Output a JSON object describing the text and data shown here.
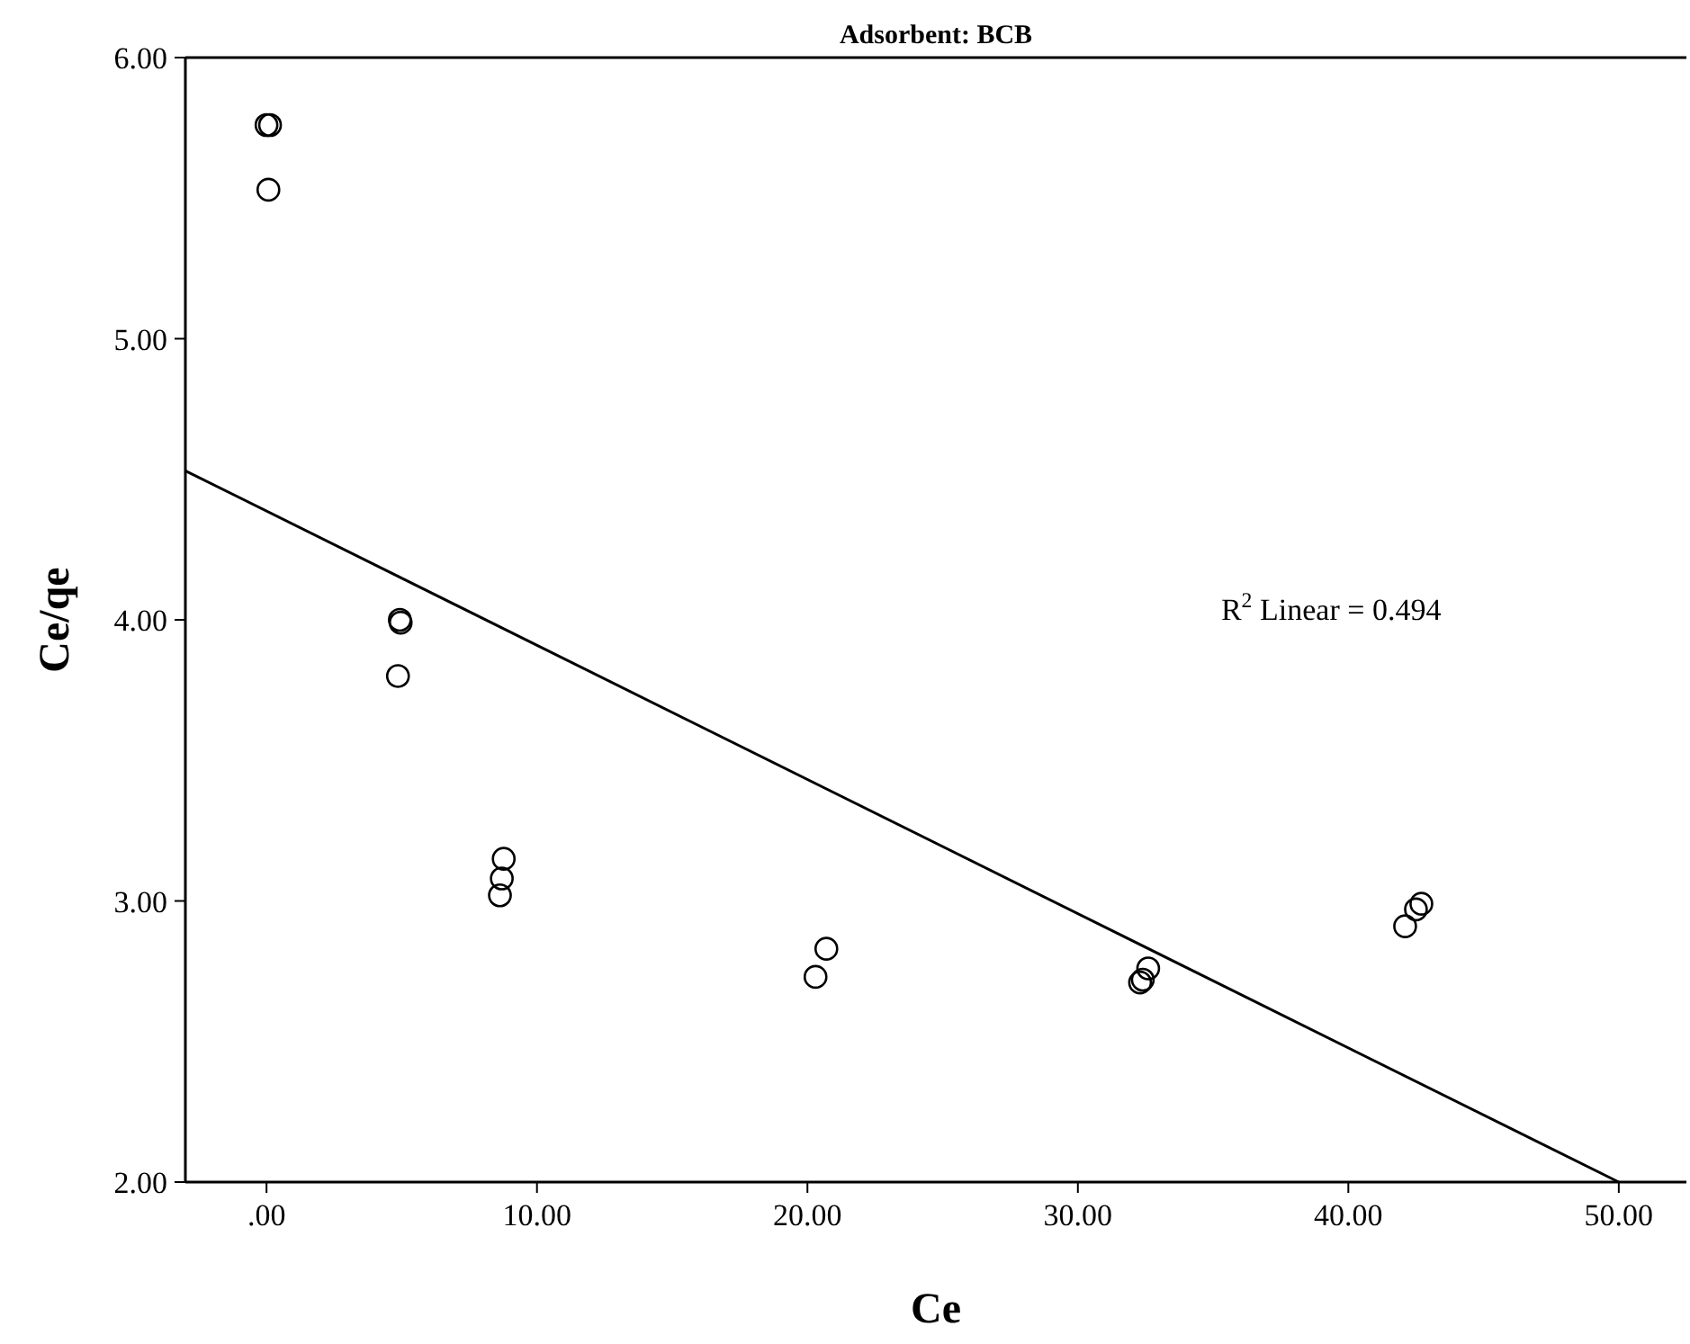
{
  "chart_data": {
    "type": "scatter",
    "title": "Adsorbent: BCB",
    "xlabel": "Ce",
    "ylabel": "Ce/qe",
    "xlim": [
      -3,
      52.5
    ],
    "xticks": [
      {
        "value": 0,
        "label": ".00"
      },
      {
        "value": 10,
        "label": "10.00"
      },
      {
        "value": 20,
        "label": "20.00"
      },
      {
        "value": 30,
        "label": "30.00"
      },
      {
        "value": 40,
        "label": "40.00"
      },
      {
        "value": 50,
        "label": "50.00"
      }
    ],
    "ylim": [
      2,
      6
    ],
    "yticks": [
      {
        "value": 2,
        "label": "2.00"
      },
      {
        "value": 3,
        "label": "3.00"
      },
      {
        "value": 4,
        "label": "4.00"
      },
      {
        "value": 5,
        "label": "5.00"
      },
      {
        "value": 6,
        "label": "6.00"
      }
    ],
    "marker": "circle",
    "grid": false,
    "series": [
      {
        "color": "#000000",
        "x": [
          0.0,
          0.13,
          0.07,
          4.93,
          4.96,
          4.86,
          8.77,
          8.7,
          8.63,
          20.3,
          20.7,
          32.3,
          32.4,
          32.6,
          42.1,
          42.5,
          42.7
        ],
        "values": [
          5.76,
          5.76,
          5.53,
          4.0,
          3.99,
          3.8,
          3.15,
          3.08,
          3.02,
          2.73,
          2.83,
          2.71,
          2.72,
          2.76,
          2.91,
          2.97,
          2.99
        ]
      },
      {
        "type": "line",
        "color": "#000000",
        "marker": "none",
        "x": [
          -3,
          50
        ],
        "values": [
          4.53,
          2.0
        ]
      }
    ],
    "annotations": [
      "R$^{2}$ Linear = 0.494"
    ]
  }
}
